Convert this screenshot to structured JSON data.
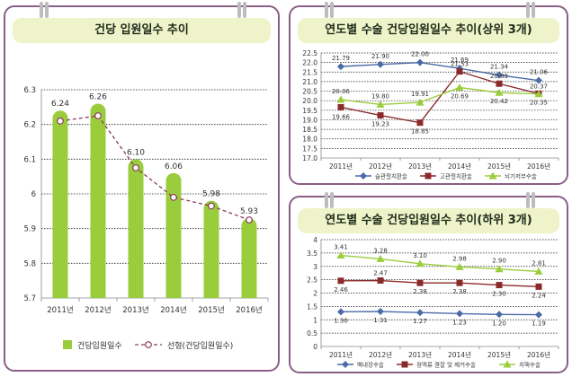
{
  "left_panel": {
    "title": "건당 입원일수 추이"
  },
  "top_right_panel": {
    "title": "연도별 수술 건당입원일수 추이(상위 3개)"
  },
  "bottom_right_panel": {
    "title": "연도별 수술 건당입원일수 추이(하위 3개)"
  },
  "chart_data": [
    {
      "type": "bar",
      "title": "",
      "categories": [
        "2011년",
        "2012년",
        "2013년",
        "2014년",
        "2015년",
        "2016년"
      ],
      "ylim": [
        5.7,
        6.3
      ],
      "yticks": [
        "5.7",
        "5.8",
        "5.9",
        "6",
        "6.1",
        "6.2",
        "6.3"
      ],
      "grid": true,
      "legend_placement": "bottom",
      "series": [
        {
          "name": "건당입원일수",
          "type": "bar",
          "values": [
            6.24,
            6.26,
            6.1,
            6.06,
            5.98,
            5.93
          ],
          "labels": [
            "6.24",
            "6.26",
            "6.10",
            "6.06",
            "5.98",
            "5.93"
          ],
          "color": "#9acd3c"
        },
        {
          "name": "선형(건당입원일수)",
          "type": "trendline",
          "values": [
            6.21,
            6.225,
            6.075,
            5.99,
            5.965,
            5.925
          ],
          "color": "#8b3a62"
        }
      ]
    },
    {
      "type": "line",
      "categories": [
        "2011년",
        "2012년",
        "2013년",
        "2014년",
        "2015년",
        "2016년"
      ],
      "ylim": [
        17,
        22.5
      ],
      "yticks": [
        "17.0",
        "17.5",
        "18.0",
        "18.5",
        "19.0",
        "19.5",
        "20.0",
        "20.5",
        "21.0",
        "21.5",
        "22.0",
        "22.5"
      ],
      "grid": true,
      "legend_placement": "bottom",
      "series": [
        {
          "name": "슬관절치환술",
          "values": [
            21.79,
            21.9,
            22.0,
            21.69,
            21.34,
            21.06
          ],
          "labels": [
            "21.79",
            "21.90",
            "22.00",
            "21.69",
            "21.34",
            "21.06"
          ],
          "color": "#4a6aa8",
          "marker": "diamond"
        },
        {
          "name": "고관절치환술",
          "values": [
            19.66,
            19.23,
            18.85,
            21.53,
            20.89,
            20.37
          ],
          "labels": [
            "19.66",
            "19.23",
            "18.85",
            "21.53",
            "20.89",
            "20.37"
          ],
          "color": "#8b2a2a",
          "marker": "square"
        },
        {
          "name": "뇌기저부수술",
          "values": [
            20.06,
            19.8,
            19.91,
            20.69,
            20.42,
            20.35
          ],
          "labels": [
            "20.06",
            "19.80",
            "19.91",
            "20.69",
            "20.42",
            "20.35"
          ],
          "color": "#9acd3c",
          "marker": "triangle"
        }
      ]
    },
    {
      "type": "line",
      "categories": [
        "2011년",
        "2012년",
        "2013년",
        "2014년",
        "2015년",
        "2016년"
      ],
      "ylim": [
        0,
        4
      ],
      "yticks": [
        "0",
        "0.5",
        "1",
        "1.5",
        "2",
        "2.5",
        "3",
        "3.5",
        "4"
      ],
      "grid": true,
      "legend_placement": "bottom",
      "series": [
        {
          "name": "백내장수술",
          "values": [
            1.3,
            1.31,
            1.27,
            1.23,
            1.2,
            1.19
          ],
          "labels": [
            "1.30",
            "1.31",
            "1.27",
            "1.23",
            "1.20",
            "1.19"
          ],
          "color": "#4a6aa8",
          "marker": "diamond"
        },
        {
          "name": "정맥류 결찰 및 제거수술",
          "values": [
            2.46,
            2.47,
            2.38,
            2.38,
            2.3,
            2.24
          ],
          "labels": [
            "2.46",
            "2.47",
            "2.38",
            "2.38",
            "2.30",
            "2.24"
          ],
          "color": "#8b2a2a",
          "marker": "square"
        },
        {
          "name": "치핵수술",
          "values": [
            3.41,
            3.28,
            3.1,
            2.98,
            2.9,
            2.81
          ],
          "labels": [
            "3.41",
            "3.28",
            "3.10",
            "2.98",
            "2.90",
            "2.81"
          ],
          "color": "#9acd3c",
          "marker": "triangle"
        }
      ]
    }
  ]
}
